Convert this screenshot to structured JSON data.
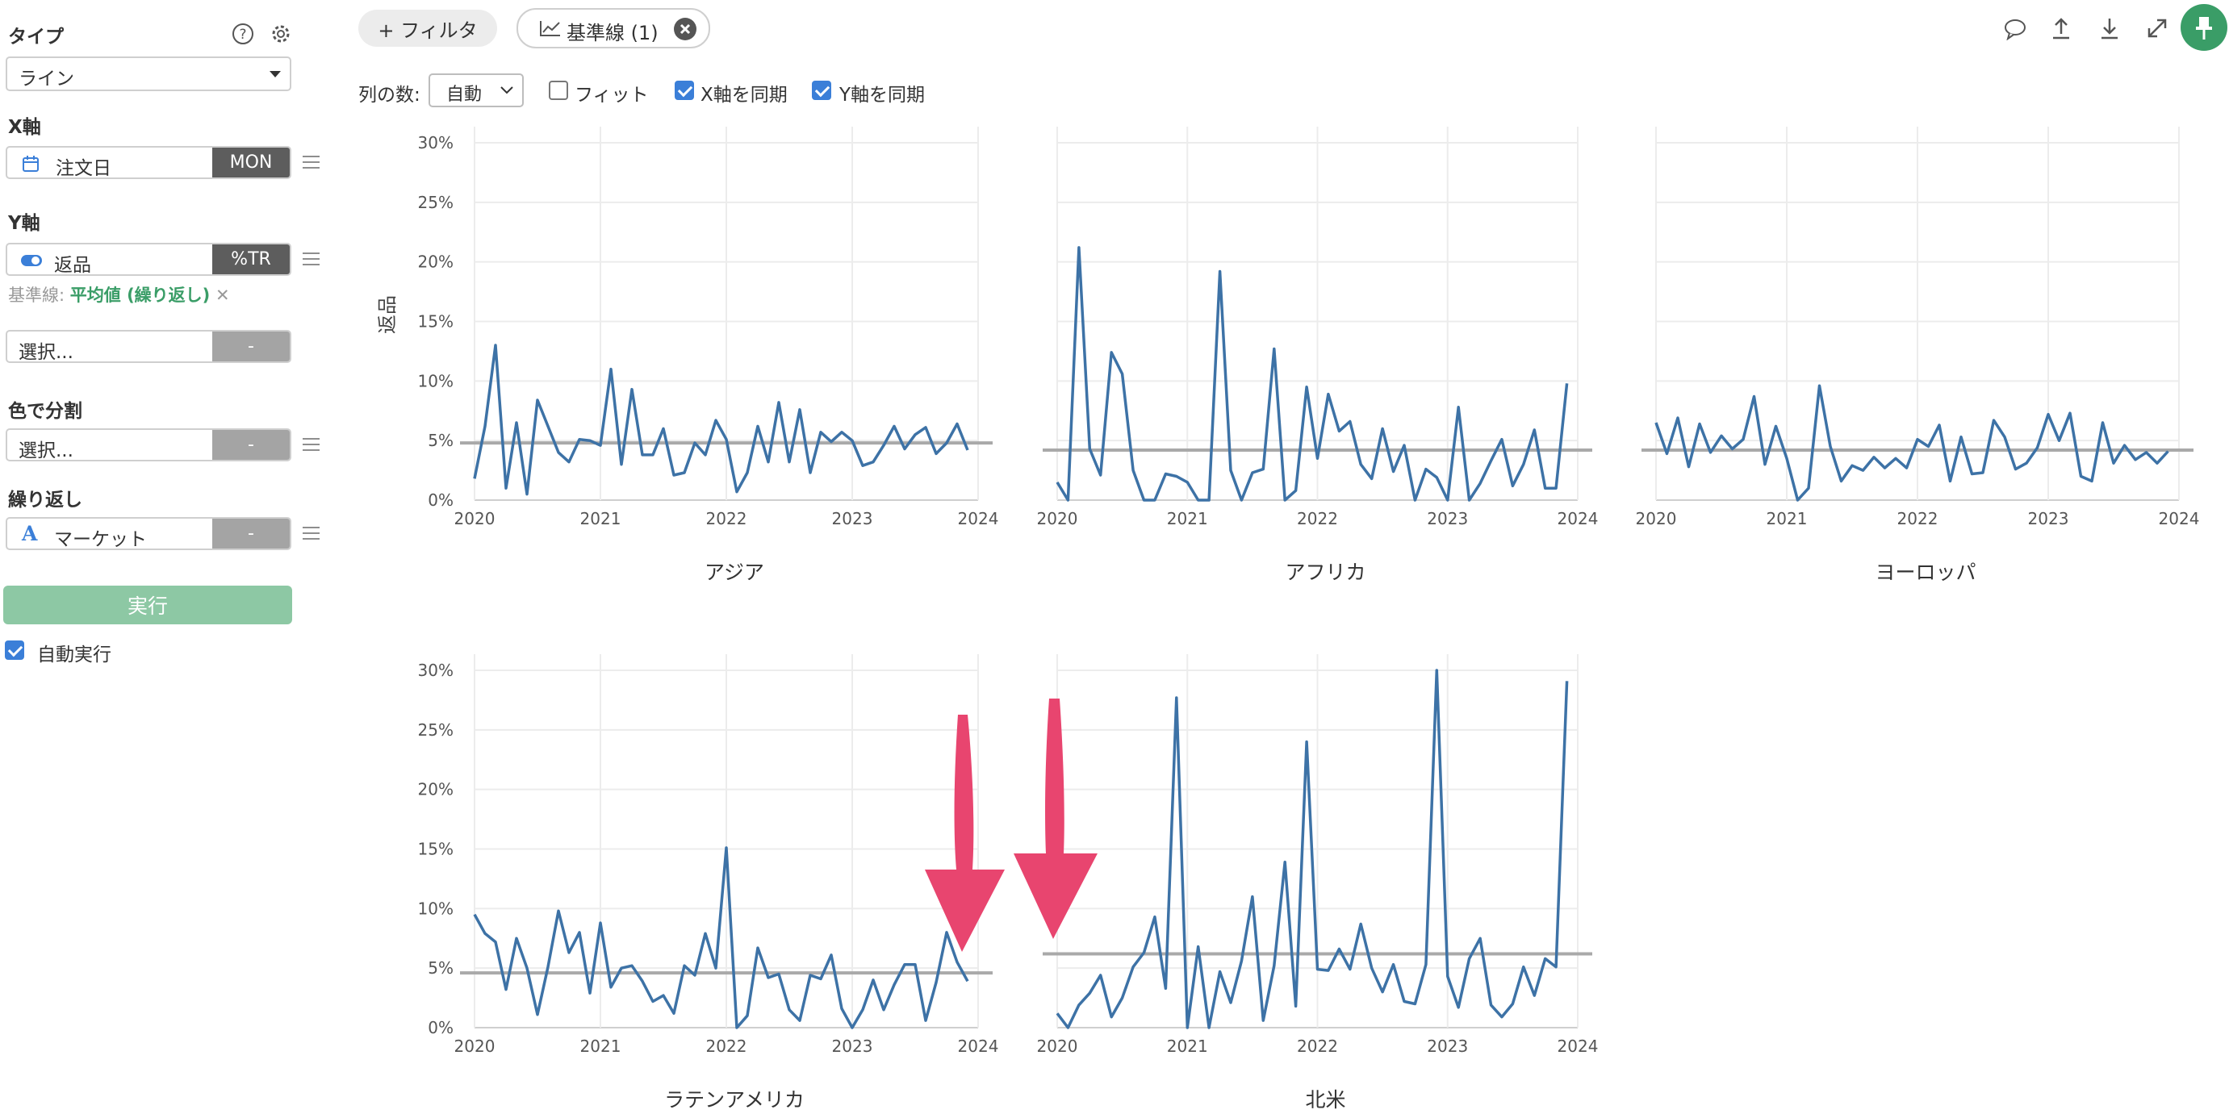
{
  "sidebar": {
    "type_title": "タイプ",
    "type_value": "ライン",
    "x_title": "X軸",
    "x_field": "注文日",
    "x_tag": "MON",
    "y_title": "Y軸",
    "y_field": "返品",
    "y_tag": "%TR",
    "baseline_prefix": "基準線:",
    "baseline_value": "平均値 (繰り返し)",
    "baseline_remove": "✕",
    "select_placeholder": "選択...",
    "dash": "-",
    "color_title": "色で分割",
    "color_placeholder": "選択...",
    "repeat_title": "繰り返し",
    "repeat_field": "マーケット",
    "run_label": "実行",
    "auto_run_label": "自動実行",
    "auto_run_checked": true
  },
  "toolbar": {
    "filter_label": "+ フィルタ",
    "baseline_chip": "基準線 (1)",
    "columns_label": "列の数:",
    "columns_value": "自動",
    "fit_label": "フィット",
    "sync_x_label": "X軸を同期",
    "sync_y_label": "Y軸を同期",
    "fit_checked": false,
    "sync_x_checked": true,
    "sync_y_checked": true
  },
  "colors": {
    "line": "#3d72a6",
    "baseline": "#a9a9a9",
    "accent_green": "#3a9d67",
    "run_button": "#8dc8a4",
    "arrow": "#e8456f",
    "check_blue": "#3b7fd8"
  },
  "chart_data": {
    "type": "line",
    "ylabel": "返品",
    "ylim": [
      0,
      30
    ],
    "y_ticks": [
      "0%",
      "5%",
      "10%",
      "15%",
      "20%",
      "25%",
      "30%"
    ],
    "x_ticks": [
      "2020",
      "2021",
      "2022",
      "2023",
      "2024"
    ],
    "x_range": [
      2020,
      2024
    ],
    "panels": [
      {
        "name": "アジア",
        "baseline": 4.8,
        "values": [
          1.8,
          6.2,
          13.0,
          1.0,
          6.5,
          0.5,
          8.4,
          6.2,
          4.0,
          3.2,
          5.1,
          5.0,
          4.6,
          11.0,
          3.0,
          9.3,
          3.8,
          3.8,
          6.0,
          2.1,
          2.3,
          4.8,
          3.8,
          6.7,
          5.1,
          0.7,
          2.3,
          6.2,
          3.2,
          8.2,
          3.2,
          7.6,
          2.3,
          5.7,
          4.9,
          5.7,
          5.0,
          2.9,
          3.2,
          4.6,
          6.2,
          4.3,
          5.5,
          6.1,
          3.9,
          4.8,
          6.4,
          4.2
        ]
      },
      {
        "name": "アフリカ",
        "baseline": 4.2,
        "values": [
          1.5,
          0.0,
          21.2,
          4.3,
          2.1,
          12.4,
          10.6,
          2.5,
          0.0,
          0.0,
          2.2,
          2.0,
          1.5,
          0.0,
          0.0,
          19.2,
          2.5,
          0.0,
          2.3,
          2.6,
          12.7,
          0.0,
          0.8,
          9.5,
          3.5,
          8.9,
          5.8,
          6.6,
          3.0,
          1.8,
          6.0,
          2.4,
          4.6,
          0.0,
          2.6,
          1.9,
          0.0,
          7.8,
          0.0,
          1.4,
          3.3,
          5.1,
          1.2,
          3.0,
          5.9,
          1.0,
          1.0,
          9.8
        ]
      },
      {
        "name": "ヨーロッパ",
        "baseline": 4.2,
        "values": [
          6.5,
          3.9,
          6.9,
          2.8,
          6.4,
          4.0,
          5.4,
          4.3,
          5.1,
          8.7,
          3.0,
          6.2,
          3.5,
          0.0,
          1.0,
          9.6,
          4.5,
          1.6,
          2.9,
          2.5,
          3.6,
          2.7,
          3.5,
          2.7,
          5.1,
          4.5,
          6.3,
          1.6,
          5.3,
          2.2,
          2.3,
          6.7,
          5.3,
          2.6,
          3.1,
          4.4,
          7.2,
          5.0,
          7.3,
          2.0,
          1.6,
          6.5,
          3.1,
          4.6,
          3.4,
          4.0,
          3.1,
          4.1
        ]
      },
      {
        "name": "ラテンアメリカ",
        "baseline": 4.6,
        "values": [
          9.5,
          7.9,
          7.2,
          3.2,
          7.5,
          5.0,
          1.1,
          5.1,
          9.8,
          6.3,
          8.0,
          2.9,
          8.8,
          3.4,
          5.0,
          5.2,
          3.9,
          2.2,
          2.7,
          1.2,
          5.2,
          4.4,
          7.9,
          5.0,
          15.1,
          0.0,
          1.0,
          6.7,
          4.2,
          4.5,
          1.5,
          0.6,
          4.4,
          4.1,
          6.1,
          1.6,
          0.0,
          1.5,
          4.0,
          1.5,
          3.6,
          5.3,
          5.3,
          0.6,
          3.8,
          8.0,
          5.5,
          3.9
        ]
      },
      {
        "name": "北米",
        "baseline": 6.2,
        "values": [
          1.2,
          0.0,
          1.9,
          2.9,
          4.4,
          0.9,
          2.5,
          5.1,
          6.3,
          9.3,
          3.3,
          27.7,
          0.0,
          6.8,
          0.0,
          4.7,
          2.1,
          5.6,
          11.0,
          0.6,
          5.2,
          13.9,
          1.8,
          24.0,
          4.9,
          4.8,
          6.6,
          4.9,
          8.7,
          5.0,
          3.0,
          5.3,
          2.2,
          2.0,
          5.3,
          30.0,
          4.3,
          1.7,
          5.8,
          7.5,
          1.9,
          0.9,
          2.0,
          5.1,
          2.7,
          5.8,
          5.1,
          29.1
        ]
      }
    ]
  }
}
